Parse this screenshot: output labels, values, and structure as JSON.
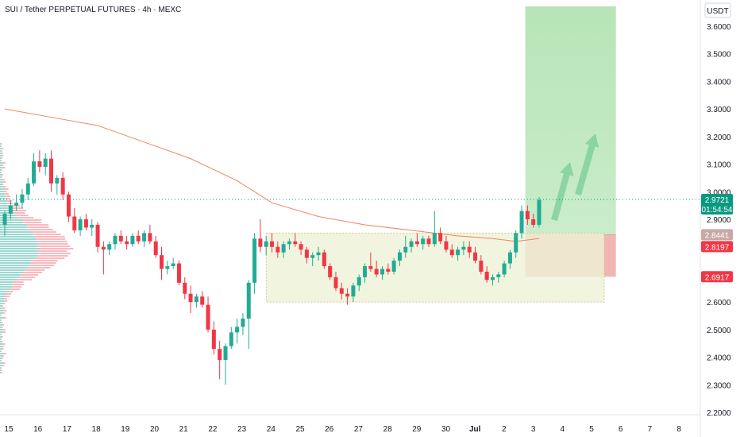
{
  "header": {
    "title": "SUI / Tether PERPETUAL FUTURES · 4h · MEXC"
  },
  "price_axis": {
    "currency_label": "USDT",
    "ticks": [
      "3.6000",
      "3.5000",
      "3.4000",
      "3.3000",
      "3.2000",
      "3.1000",
      "3.0000",
      "2.9000",
      "2.8000",
      "2.7000",
      "2.6000",
      "2.5000",
      "2.4000",
      "2.3000",
      "2.2000"
    ]
  },
  "time_axis": {
    "labels": [
      "15",
      "16",
      "17",
      "18",
      "19",
      "20",
      "21",
      "22",
      "23",
      "24",
      "25",
      "26",
      "27",
      "28",
      "29",
      "30",
      "Jul",
      "2",
      "3",
      "4",
      "5",
      "6",
      "7",
      "8"
    ]
  },
  "price_tags": [
    {
      "label": "2.9721",
      "sub": "01:54:54",
      "value": 2.9721,
      "color": "#089981"
    },
    {
      "label": "2.8441",
      "value": 2.8441,
      "color": "#c9a8a8"
    },
    {
      "label": "2.8197",
      "value": 2.8197,
      "color": "#f23645"
    },
    {
      "label": "2.6917",
      "value": 2.6917,
      "color": "#f23645"
    }
  ],
  "colors": {
    "up": "#22ab94",
    "down": "#f23645",
    "ma": "#f0865c",
    "profit_zone": "#9fdc9f",
    "loss_zone": "#f2b5b5",
    "range_box": "#eef3d7",
    "range_border": "#d8c48a",
    "arrow": "#7fd19a"
  },
  "chart_data": {
    "type": "candlestick",
    "title": "SUI / Tether PERPETUAL FUTURES · 4h · MEXC",
    "timeframe": "4h",
    "ylim": [
      2.18,
      3.65
    ],
    "x_labels": [
      "15",
      "16",
      "17",
      "18",
      "19",
      "20",
      "21",
      "22",
      "23",
      "24",
      "25",
      "26",
      "27",
      "28",
      "29",
      "30",
      "Jul",
      "2",
      "3",
      "4",
      "5",
      "6",
      "7",
      "8"
    ],
    "last_price": 2.9721,
    "countdown": "01:54:54",
    "long_position": {
      "entry": 2.8441,
      "stop": 2.6917,
      "target_top": 3.65,
      "start_day": "3",
      "end_day": "6"
    },
    "range_box": {
      "top": 2.85,
      "bottom": 2.6,
      "from_day": "24",
      "to_day": "5"
    },
    "candles": [
      [
        2.88,
        2.93,
        2.84,
        2.92
      ],
      [
        2.92,
        2.97,
        2.9,
        2.95
      ],
      [
        2.95,
        2.99,
        2.93,
        2.96
      ],
      [
        2.96,
        3.01,
        2.94,
        2.99
      ],
      [
        2.99,
        3.05,
        2.97,
        3.03
      ],
      [
        3.03,
        3.14,
        3.02,
        3.11
      ],
      [
        3.11,
        3.15,
        3.07,
        3.09
      ],
      [
        3.09,
        3.14,
        3.06,
        3.12
      ],
      [
        3.12,
        3.15,
        3.0,
        3.03
      ],
      [
        3.03,
        3.06,
        2.99,
        3.05
      ],
      [
        3.05,
        3.07,
        2.97,
        2.99
      ],
      [
        2.99,
        3.0,
        2.89,
        2.91
      ],
      [
        2.91,
        2.94,
        2.85,
        2.86
      ],
      [
        2.86,
        2.91,
        2.84,
        2.9
      ],
      [
        2.9,
        2.92,
        2.86,
        2.87
      ],
      [
        2.87,
        2.9,
        2.84,
        2.88
      ],
      [
        2.88,
        2.89,
        2.78,
        2.8
      ],
      [
        2.8,
        2.82,
        2.7,
        2.79
      ],
      [
        2.79,
        2.82,
        2.77,
        2.81
      ],
      [
        2.81,
        2.85,
        2.79,
        2.84
      ],
      [
        2.84,
        2.86,
        2.81,
        2.82
      ],
      [
        2.82,
        2.84,
        2.79,
        2.81
      ],
      [
        2.81,
        2.85,
        2.8,
        2.84
      ],
      [
        2.84,
        2.86,
        2.81,
        2.82
      ],
      [
        2.82,
        2.86,
        2.8,
        2.85
      ],
      [
        2.85,
        2.88,
        2.81,
        2.82
      ],
      [
        2.82,
        2.84,
        2.76,
        2.77
      ],
      [
        2.77,
        2.8,
        2.68,
        2.72
      ],
      [
        2.72,
        2.75,
        2.7,
        2.73
      ],
      [
        2.73,
        2.76,
        2.72,
        2.74
      ],
      [
        2.74,
        2.75,
        2.66,
        2.67
      ],
      [
        2.67,
        2.69,
        2.61,
        2.63
      ],
      [
        2.63,
        2.66,
        2.56,
        2.6
      ],
      [
        2.6,
        2.63,
        2.58,
        2.62
      ],
      [
        2.62,
        2.64,
        2.58,
        2.59
      ],
      [
        2.59,
        2.62,
        2.49,
        2.5
      ],
      [
        2.5,
        2.53,
        2.41,
        2.43
      ],
      [
        2.43,
        2.46,
        2.32,
        2.39
      ],
      [
        2.39,
        2.45,
        2.3,
        2.44
      ],
      [
        2.44,
        2.51,
        2.43,
        2.49
      ],
      [
        2.49,
        2.54,
        2.45,
        2.51
      ],
      [
        2.51,
        2.56,
        2.48,
        2.54
      ],
      [
        2.54,
        2.68,
        2.43,
        2.67
      ],
      [
        2.67,
        2.85,
        2.63,
        2.83
      ],
      [
        2.83,
        2.9,
        2.78,
        2.8
      ],
      [
        2.8,
        2.84,
        2.77,
        2.82
      ],
      [
        2.82,
        2.85,
        2.78,
        2.8
      ],
      [
        2.8,
        2.82,
        2.76,
        2.78
      ],
      [
        2.78,
        2.82,
        2.76,
        2.81
      ],
      [
        2.81,
        2.83,
        2.79,
        2.82
      ],
      [
        2.82,
        2.85,
        2.8,
        2.81
      ],
      [
        2.81,
        2.82,
        2.77,
        2.79
      ],
      [
        2.79,
        2.8,
        2.74,
        2.76
      ],
      [
        2.76,
        2.78,
        2.73,
        2.77
      ],
      [
        2.77,
        2.8,
        2.75,
        2.78
      ],
      [
        2.78,
        2.79,
        2.72,
        2.73
      ],
      [
        2.73,
        2.74,
        2.68,
        2.69
      ],
      [
        2.69,
        2.71,
        2.64,
        2.65
      ],
      [
        2.65,
        2.67,
        2.61,
        2.63
      ],
      [
        2.63,
        2.65,
        2.59,
        2.62
      ],
      [
        2.62,
        2.67,
        2.6,
        2.66
      ],
      [
        2.66,
        2.7,
        2.64,
        2.69
      ],
      [
        2.69,
        2.74,
        2.67,
        2.73
      ],
      [
        2.73,
        2.78,
        2.71,
        2.72
      ],
      [
        2.72,
        2.75,
        2.69,
        2.7
      ],
      [
        2.7,
        2.73,
        2.68,
        2.72
      ],
      [
        2.72,
        2.74,
        2.7,
        2.71
      ],
      [
        2.71,
        2.76,
        2.7,
        2.75
      ],
      [
        2.75,
        2.79,
        2.73,
        2.78
      ],
      [
        2.78,
        2.84,
        2.76,
        2.8
      ],
      [
        2.8,
        2.83,
        2.78,
        2.82
      ],
      [
        2.82,
        2.85,
        2.8,
        2.81
      ],
      [
        2.81,
        2.84,
        2.79,
        2.83
      ],
      [
        2.83,
        2.84,
        2.8,
        2.81
      ],
      [
        2.81,
        2.93,
        2.8,
        2.85
      ],
      [
        2.85,
        2.87,
        2.81,
        2.82
      ],
      [
        2.82,
        2.84,
        2.78,
        2.79
      ],
      [
        2.79,
        2.81,
        2.76,
        2.77
      ],
      [
        2.77,
        2.8,
        2.75,
        2.79
      ],
      [
        2.79,
        2.82,
        2.77,
        2.8
      ],
      [
        2.8,
        2.82,
        2.76,
        2.78
      ],
      [
        2.78,
        2.8,
        2.74,
        2.75
      ],
      [
        2.75,
        2.77,
        2.7,
        2.71
      ],
      [
        2.71,
        2.73,
        2.67,
        2.68
      ],
      [
        2.68,
        2.7,
        2.66,
        2.69
      ],
      [
        2.69,
        2.71,
        2.67,
        2.7
      ],
      [
        2.7,
        2.75,
        2.69,
        2.74
      ],
      [
        2.74,
        2.79,
        2.72,
        2.78
      ],
      [
        2.78,
        2.86,
        2.76,
        2.85
      ],
      [
        2.85,
        2.95,
        2.83,
        2.93
      ],
      [
        2.93,
        2.95,
        2.88,
        2.9
      ],
      [
        2.9,
        2.92,
        2.87,
        2.88
      ],
      [
        2.88,
        2.98,
        2.87,
        2.97
      ]
    ],
    "moving_average": [
      [
        0,
        3.3
      ],
      [
        8,
        3.27
      ],
      [
        16,
        3.24
      ],
      [
        24,
        3.18
      ],
      [
        32,
        3.12
      ],
      [
        40,
        3.04
      ],
      [
        46,
        2.96
      ],
      [
        54,
        2.91
      ],
      [
        62,
        2.88
      ],
      [
        70,
        2.86
      ],
      [
        78,
        2.84
      ],
      [
        84,
        2.83
      ],
      [
        88,
        2.82
      ],
      [
        92,
        2.83
      ]
    ]
  }
}
